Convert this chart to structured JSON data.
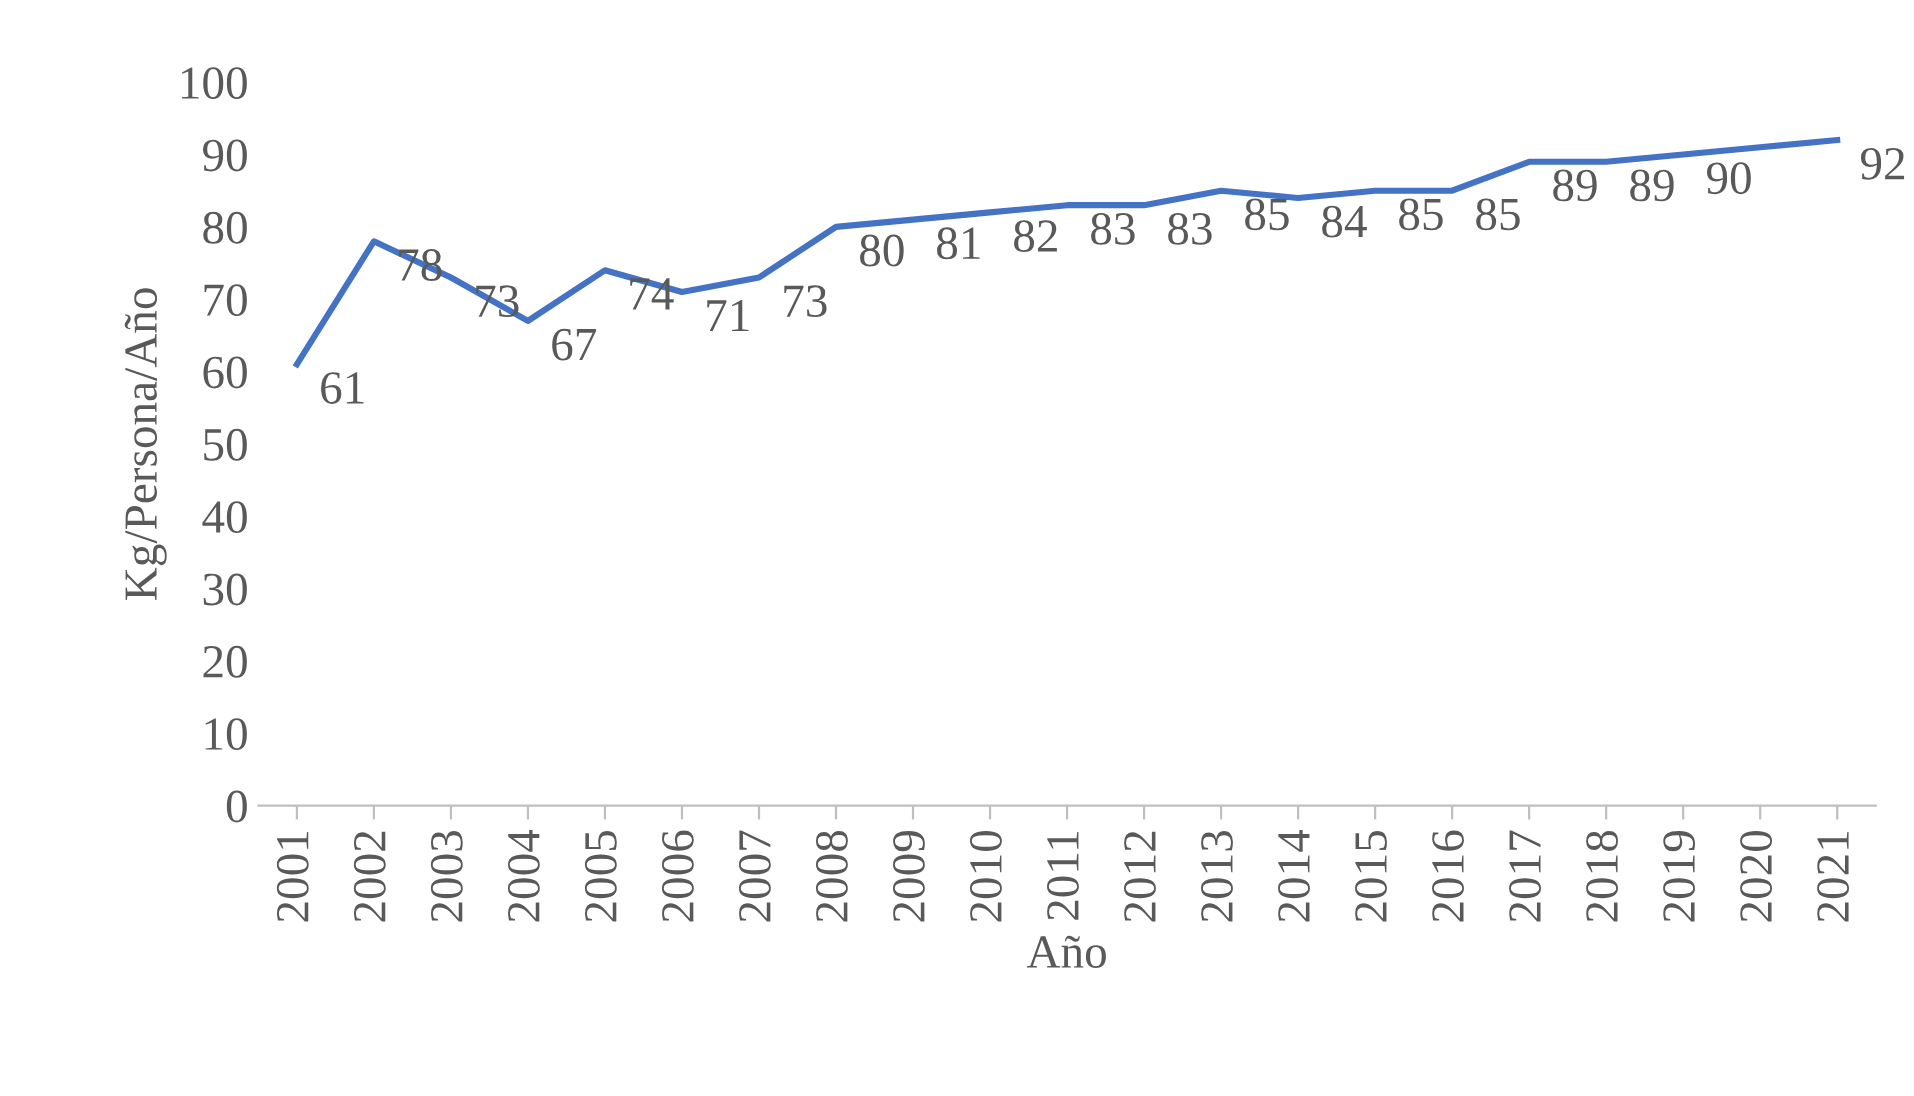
{
  "chart_data": {
    "type": "line",
    "xlabel": "Año",
    "ylabel": "Kg/Persona/Año",
    "categories": [
      "2001",
      "2002",
      "2003",
      "2004",
      "2005",
      "2006",
      "2007",
      "2008",
      "2009",
      "2010",
      "2011",
      "2012",
      "2013",
      "2014",
      "2015",
      "2016",
      "2017",
      "2018",
      "2019",
      "2020",
      "2021"
    ],
    "series": [
      {
        "color": "#4472c4",
        "values": [
          61,
          78,
          73,
          67,
          74,
          71,
          73,
          80,
          81,
          82,
          83,
          83,
          85,
          84,
          85,
          85,
          89,
          89,
          90,
          91,
          92
        ],
        "value_labels": [
          "61",
          "78",
          "73",
          "67",
          "74",
          "71",
          "73",
          "80",
          "81",
          "82",
          "83",
          "83",
          "85",
          "84",
          "85",
          "85",
          "89",
          "89",
          "90",
          null,
          "92"
        ]
      }
    ],
    "ylim": [
      0,
      100
    ],
    "yticks": [
      0,
      10,
      20,
      30,
      40,
      50,
      60,
      70,
      80,
      90,
      100
    ],
    "grid": false,
    "legend": false,
    "marker": "none",
    "line_style": "solid"
  }
}
